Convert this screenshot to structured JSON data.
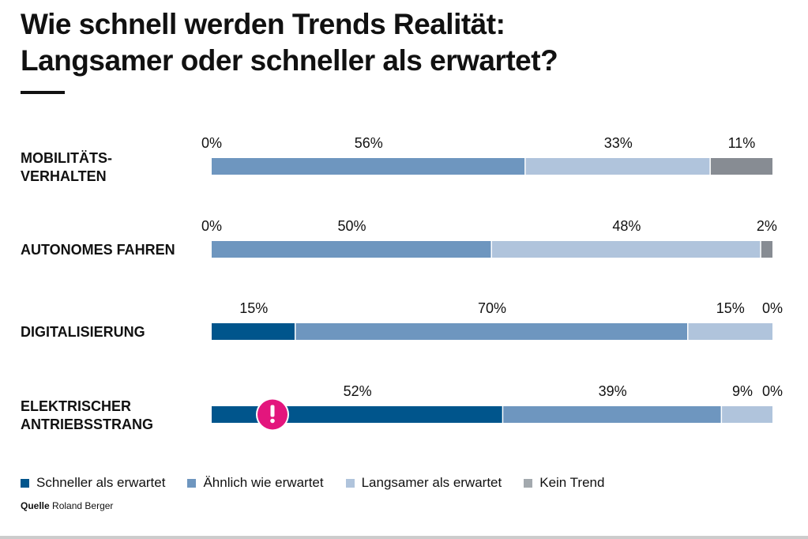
{
  "title_line1": "Wie schnell werden Trends Realität:",
  "title_line2": "Langsamer oder schneller als erwartet?",
  "source_label": "Quelle",
  "source_value": "Roland Berger",
  "chart_data": {
    "type": "bar",
    "orientation": "horizontal",
    "stacked": true,
    "xlim": [
      0,
      100
    ],
    "categories": [
      [
        "MOBILITÄTS-",
        "VERHALTEN"
      ],
      [
        "AUTONOMES FAHREN"
      ],
      [
        "DIGITALISIERUNG"
      ],
      [
        "ELEKTRISCHER",
        "ANTRIEBSSTRANG"
      ]
    ],
    "series": [
      {
        "name": "Schneller als erwartet",
        "color": "#00558c",
        "values": [
          0,
          0,
          15,
          52
        ],
        "labels": [
          "0%",
          "0%",
          "15%",
          "52%"
        ]
      },
      {
        "name": "Ähnlich wie erwartet",
        "color": "#6e96bf",
        "values": [
          56,
          50,
          70,
          39
        ],
        "labels": [
          "56%",
          "50%",
          "70%",
          "39%"
        ]
      },
      {
        "name": "Langsamer als erwartet",
        "color": "#b0c4dc",
        "values": [
          33,
          48,
          15,
          9
        ],
        "labels": [
          "33%",
          "48%",
          "15%",
          "9%"
        ]
      },
      {
        "name": "Kein Trend",
        "color": "#878c93",
        "values": [
          11,
          2,
          0,
          0
        ],
        "labels": [
          "11%",
          "2%",
          "0%",
          "0%"
        ]
      }
    ],
    "legend": "bottom-left",
    "grid": false,
    "annotation": {
      "category_index": 3,
      "icon": "exclamation-icon",
      "color": "#e3167d"
    }
  }
}
